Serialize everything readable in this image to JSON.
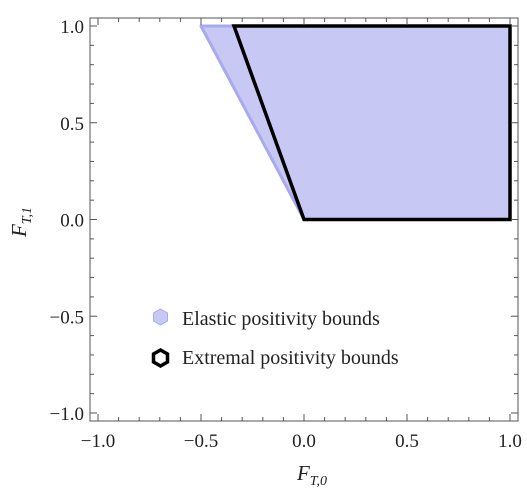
{
  "colors": {
    "elastic_fill": "#c8c8f5",
    "elastic_edge": "#a9a9ee",
    "extremal_edge": "#000000",
    "frame": "#555555"
  },
  "chart_data": {
    "type": "area",
    "title": "",
    "xlabel": {
      "base": "F",
      "sub": "T,0"
    },
    "ylabel": {
      "base": "F",
      "sub": "T,1"
    },
    "xlim": [
      -1.0,
      1.0
    ],
    "ylim": [
      -1.0,
      1.0
    ],
    "xticks": [
      -1.0,
      -0.5,
      0.0,
      0.5,
      1.0
    ],
    "yticks": [
      -1.0,
      -0.5,
      0.0,
      0.5,
      1.0
    ],
    "xtick_labels": [
      "−1.0",
      "−0.5",
      "0.0",
      "0.5",
      "1.0"
    ],
    "ytick_labels": [
      "−1.0",
      "−0.5",
      "0.0",
      "0.5",
      "1.0"
    ],
    "grid": false,
    "legend_position": "lower-left",
    "series": [
      {
        "name": "Elastic positivity bounds",
        "style": "filled",
        "points": [
          [
            0,
            0
          ],
          [
            1,
            0
          ],
          [
            1,
            1
          ],
          [
            -0.5,
            1
          ]
        ]
      },
      {
        "name": "Extremal positivity bounds",
        "style": "outline",
        "points": [
          [
            0,
            0
          ],
          [
            1,
            0
          ],
          [
            1,
            1
          ],
          [
            -0.34,
            1
          ]
        ]
      }
    ]
  }
}
